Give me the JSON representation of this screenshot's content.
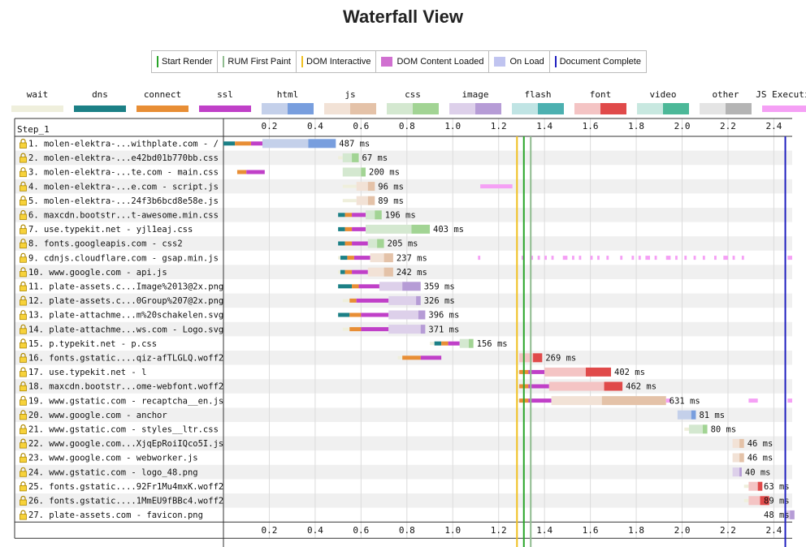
{
  "page": {
    "title": "Waterfall View"
  },
  "legend": [
    {
      "label": "Start Render",
      "kind": "line",
      "color": "#28a428"
    },
    {
      "label": "RUM First Paint",
      "kind": "line",
      "color": "#8fbc8f"
    },
    {
      "label": "DOM Interactive",
      "kind": "line",
      "color": "#f0c020"
    },
    {
      "label": "DOM Content Loaded",
      "kind": "box",
      "color": "#d070d0"
    },
    {
      "label": "On Load",
      "kind": "box",
      "color": "#c0c4f0"
    },
    {
      "label": "Document Complete",
      "kind": "line",
      "color": "#1f1fbf"
    }
  ],
  "types": [
    {
      "label": "wait",
      "c1": "#efefdc",
      "c2": "#efefdc"
    },
    {
      "label": "dns",
      "c1": "#1c8086",
      "c2": "#1c8086"
    },
    {
      "label": "connect",
      "c1": "#e88e35",
      "c2": "#e88e35"
    },
    {
      "label": "ssl",
      "c1": "#c040c8",
      "c2": "#c040c8"
    },
    {
      "label": "html",
      "c1": "#c4d0ea",
      "c2": "#789ede"
    },
    {
      "label": "js",
      "c1": "#f2e2d6",
      "c2": "#e4c2a8"
    },
    {
      "label": "css",
      "c1": "#d4e8d0",
      "c2": "#a2d494"
    },
    {
      "label": "image",
      "c1": "#ddd0ea",
      "c2": "#b69cd6"
    },
    {
      "label": "flash",
      "c1": "#c0e4e4",
      "c2": "#4cb0b0"
    },
    {
      "label": "font",
      "c1": "#f4c4c4",
      "c2": "#e04a4a"
    },
    {
      "label": "video",
      "c1": "#c8e8e0",
      "c2": "#4cb898"
    },
    {
      "label": "other",
      "c1": "#e4e4e4",
      "c2": "#b4b4b4"
    },
    {
      "label": "JS Execution",
      "c1": "#f5a0f5",
      "c2": "#f5a0f5"
    }
  ],
  "chart_data": {
    "type": "waterfall",
    "step_label": "Step_1",
    "x_ticks": [
      "0.2",
      "0.4",
      "0.6",
      "0.8",
      "1.0",
      "1.2",
      "1.4",
      "1.6",
      "1.8",
      "2.0",
      "2.2",
      "2.4"
    ],
    "x_unit": "s",
    "xlim": [
      0,
      2.48
    ],
    "markers": [
      {
        "name": "DOM Interactive",
        "t": 1.28,
        "color": "#f0c020"
      },
      {
        "name": "Start Render",
        "t": 1.31,
        "color": "#28a428"
      },
      {
        "name": "RUM First Paint",
        "t": 1.34,
        "color": "#8fbc8f"
      },
      {
        "name": "Document Complete",
        "t": 2.45,
        "color": "#1f1fbf"
      }
    ],
    "requests": [
      {
        "label": "1. molen-elektra-...withplate.com - /",
        "type": "html",
        "duration": "487 ms",
        "wait": 0,
        "dns": [
          0,
          0.05
        ],
        "connect": [
          0.05,
          0.12
        ],
        "ssl": [
          0.12,
          0.17
        ],
        "ttfb": [
          0.17,
          0.37
        ],
        "download": [
          0.37,
          0.49
        ]
      },
      {
        "label": "2. molen-elektra-...e42bd01b770bb.css",
        "type": "css",
        "duration": "67 ms",
        "wait": 0.5,
        "ttfb": [
          0.52,
          0.56
        ],
        "download": [
          0.56,
          0.59
        ]
      },
      {
        "label": "3. molen-elektra-...te.com - main.css",
        "type": "css",
        "duration": "200 ms",
        "wait": 0.5,
        "connect": [
          0.06,
          0.1
        ],
        "ssl": [
          0.1,
          0.18
        ],
        "ttfb": [
          0.52,
          0.6
        ],
        "download": [
          0.6,
          0.62
        ]
      },
      {
        "label": "4. molen-elektra-...e.com - script.js",
        "type": "js",
        "duration": "96 ms",
        "wait": 0.52,
        "ttfb": [
          0.58,
          0.63
        ],
        "download": [
          0.63,
          0.66
        ],
        "js_exec": [
          [
            1.12,
            1.26
          ]
        ]
      },
      {
        "label": "5. molen-elektra-...24f3b6bcd8e58e.js",
        "type": "js",
        "duration": "89 ms",
        "wait": 0.52,
        "ttfb": [
          0.58,
          0.63
        ],
        "download": [
          0.63,
          0.66
        ]
      },
      {
        "label": "6. maxcdn.bootstr...t-awesome.min.css",
        "type": "css",
        "duration": "196 ms",
        "wait": 0.5,
        "dns": [
          0.5,
          0.53
        ],
        "connect": [
          0.53,
          0.56
        ],
        "ssl": [
          0.56,
          0.62
        ],
        "ttfb": [
          0.62,
          0.66
        ],
        "download": [
          0.66,
          0.69
        ]
      },
      {
        "label": "7. use.typekit.net - yjl1eaj.css",
        "type": "css",
        "duration": "403 ms",
        "wait": 0.5,
        "dns": [
          0.5,
          0.53
        ],
        "connect": [
          0.53,
          0.56
        ],
        "ssl": [
          0.56,
          0.62
        ],
        "ttfb": [
          0.62,
          0.82
        ],
        "download": [
          0.82,
          0.9
        ]
      },
      {
        "label": "8. fonts.googleapis.com - css2",
        "type": "css",
        "duration": "205 ms",
        "wait": 0.5,
        "dns": [
          0.5,
          0.53
        ],
        "connect": [
          0.53,
          0.56
        ],
        "ssl": [
          0.56,
          0.63
        ],
        "ttfb": [
          0.63,
          0.67
        ],
        "download": [
          0.67,
          0.7
        ]
      },
      {
        "label": "9. cdnjs.cloudflare.com - gsap.min.js",
        "type": "js",
        "duration": "237 ms",
        "wait": 0.5,
        "dns": [
          0.51,
          0.54
        ],
        "connect": [
          0.54,
          0.57
        ],
        "ssl": [
          0.57,
          0.64
        ],
        "ttfb": [
          0.64,
          0.7
        ],
        "download": [
          0.7,
          0.74
        ],
        "js_exec": [
          [
            1.11,
            1.12
          ],
          [
            1.3,
            1.31
          ],
          [
            1.34,
            1.35
          ],
          [
            1.37,
            1.38
          ],
          [
            1.4,
            1.41
          ],
          [
            1.43,
            1.44
          ],
          [
            1.48,
            1.5
          ],
          [
            1.52,
            1.53
          ],
          [
            1.55,
            1.56
          ],
          [
            1.6,
            1.61
          ],
          [
            1.63,
            1.64
          ],
          [
            1.67,
            1.68
          ],
          [
            1.73,
            1.74
          ],
          [
            1.78,
            1.79
          ],
          [
            1.81,
            1.82
          ],
          [
            1.84,
            1.86
          ],
          [
            1.88,
            1.89
          ],
          [
            1.93,
            1.95
          ],
          [
            1.97,
            1.98
          ],
          [
            2.01,
            2.02
          ],
          [
            2.05,
            2.06
          ],
          [
            2.09,
            2.1
          ],
          [
            2.14,
            2.15
          ],
          [
            2.18,
            2.2
          ],
          [
            2.22,
            2.23
          ],
          [
            2.26,
            2.27
          ],
          [
            2.46,
            2.48
          ]
        ]
      },
      {
        "label": "10. www.google.com - api.js",
        "type": "js",
        "duration": "242 ms",
        "wait": 0.5,
        "dns": [
          0.51,
          0.53
        ],
        "connect": [
          0.53,
          0.56
        ],
        "ssl": [
          0.56,
          0.63
        ],
        "ttfb": [
          0.63,
          0.7
        ],
        "download": [
          0.7,
          0.74
        ]
      },
      {
        "label": "11. plate-assets.c...Image%2013@2x.png",
        "type": "image",
        "duration": "359 ms",
        "wait": 0.5,
        "dns": [
          0.5,
          0.56
        ],
        "connect": [
          0.56,
          0.59
        ],
        "ssl": [
          0.59,
          0.68
        ],
        "ttfb": [
          0.68,
          0.78
        ],
        "download": [
          0.78,
          0.86
        ]
      },
      {
        "label": "12. plate-assets.c...0Group%207@2x.png",
        "type": "image",
        "duration": "326 ms",
        "wait": 0.52,
        "connect": [
          0.55,
          0.58
        ],
        "ssl": [
          0.58,
          0.72
        ],
        "ttfb": [
          0.72,
          0.84
        ],
        "download": [
          0.84,
          0.86
        ]
      },
      {
        "label": "13. plate-attachme...m%20schakelen.svg",
        "type": "image",
        "duration": "396 ms",
        "wait": 0.5,
        "dns": [
          0.5,
          0.55
        ],
        "connect": [
          0.55,
          0.6
        ],
        "ssl": [
          0.6,
          0.72
        ],
        "ttfb": [
          0.72,
          0.85
        ],
        "download": [
          0.85,
          0.88
        ]
      },
      {
        "label": "14. plate-attachme...ws.com - Logo.svg",
        "type": "image",
        "duration": "371 ms",
        "wait": 0.52,
        "connect": [
          0.55,
          0.6
        ],
        "ssl": [
          0.6,
          0.72
        ],
        "ttfb": [
          0.72,
          0.86
        ],
        "download": [
          0.86,
          0.88
        ]
      },
      {
        "label": "15. p.typekit.net - p.css",
        "type": "css",
        "duration": "156 ms",
        "wait": 0.9,
        "dns": [
          0.92,
          0.95
        ],
        "connect": [
          0.95,
          0.98
        ],
        "ssl": [
          0.98,
          1.03
        ],
        "ttfb": [
          1.03,
          1.07
        ],
        "download": [
          1.07,
          1.09
        ]
      },
      {
        "label": "16. fonts.gstatic....qiz-afTLGLQ.woff2",
        "type": "font",
        "duration": "269 ms",
        "wait": 0.76,
        "connect": [
          0.78,
          0.86
        ],
        "ssl": [
          0.86,
          0.95
        ],
        "ttfb": [
          1.29,
          1.35
        ],
        "download": [
          1.35,
          1.39
        ]
      },
      {
        "label": "17. use.typekit.net - l",
        "type": "font",
        "duration": "402 ms",
        "wait": 1.28,
        "connect": [
          1.29,
          1.33
        ],
        "ssl": [
          1.33,
          1.4
        ],
        "ttfb": [
          1.4,
          1.58
        ],
        "download": [
          1.58,
          1.69
        ]
      },
      {
        "label": "18. maxcdn.bootstr...ome-webfont.woff2",
        "type": "font",
        "duration": "462 ms",
        "wait": 1.28,
        "connect": [
          1.29,
          1.33
        ],
        "ssl": [
          1.33,
          1.42
        ],
        "ttfb": [
          1.42,
          1.66
        ],
        "download": [
          1.66,
          1.74
        ]
      },
      {
        "label": "19. www.gstatic.com - recaptcha__en.js",
        "type": "js",
        "duration": "631 ms",
        "wait": 1.28,
        "connect": [
          1.29,
          1.33
        ],
        "ssl": [
          1.33,
          1.43
        ],
        "ttfb": [
          1.43,
          1.65
        ],
        "download": [
          1.65,
          1.93
        ],
        "js_exec": [
          [
            1.93,
            1.95
          ],
          [
            2.29,
            2.33
          ],
          [
            2.46,
            2.48
          ]
        ]
      },
      {
        "label": "20. www.google.com - anchor",
        "type": "html",
        "duration": "81 ms",
        "wait": 1.98,
        "ttfb": [
          1.98,
          2.04
        ],
        "download": [
          2.04,
          2.06
        ]
      },
      {
        "label": "21. www.gstatic.com - styles__ltr.css",
        "type": "css",
        "duration": "80 ms",
        "wait": 2.01,
        "ttfb": [
          2.03,
          2.09
        ],
        "download": [
          2.09,
          2.11
        ]
      },
      {
        "label": "22. www.google.com...XjqEpRoiIQco5I.js",
        "type": "js",
        "duration": "46 ms",
        "wait": 2.22,
        "ttfb": [
          2.22,
          2.25
        ],
        "download": [
          2.25,
          2.27
        ]
      },
      {
        "label": "23. www.google.com - webworker.js",
        "type": "js",
        "duration": "46 ms",
        "wait": 2.22,
        "ttfb": [
          2.22,
          2.25
        ],
        "download": [
          2.25,
          2.27
        ]
      },
      {
        "label": "24. www.gstatic.com - logo_48.png",
        "type": "image",
        "duration": "40 ms",
        "wait": 2.22,
        "ttfb": [
          2.22,
          2.25
        ],
        "download": [
          2.25,
          2.26
        ]
      },
      {
        "label": "25. fonts.gstatic....92Fr1Mu4mxK.woff2",
        "type": "font",
        "duration": "63 ms",
        "wait": 2.27,
        "ttfb": [
          2.29,
          2.33
        ],
        "download": [
          2.33,
          2.35
        ]
      },
      {
        "label": "26. fonts.gstatic....1MmEU9fBBc4.woff2",
        "type": "font",
        "duration": "89 ms",
        "wait": 2.27,
        "ttfb": [
          2.29,
          2.34
        ],
        "download": [
          2.34,
          2.38
        ]
      },
      {
        "label": "27. plate-assets.com - favicon.png",
        "type": "image",
        "duration": "48 ms",
        "wait": 2.45,
        "ttfb": [
          2.45,
          2.47
        ],
        "download": [
          2.47,
          2.49
        ]
      }
    ]
  }
}
